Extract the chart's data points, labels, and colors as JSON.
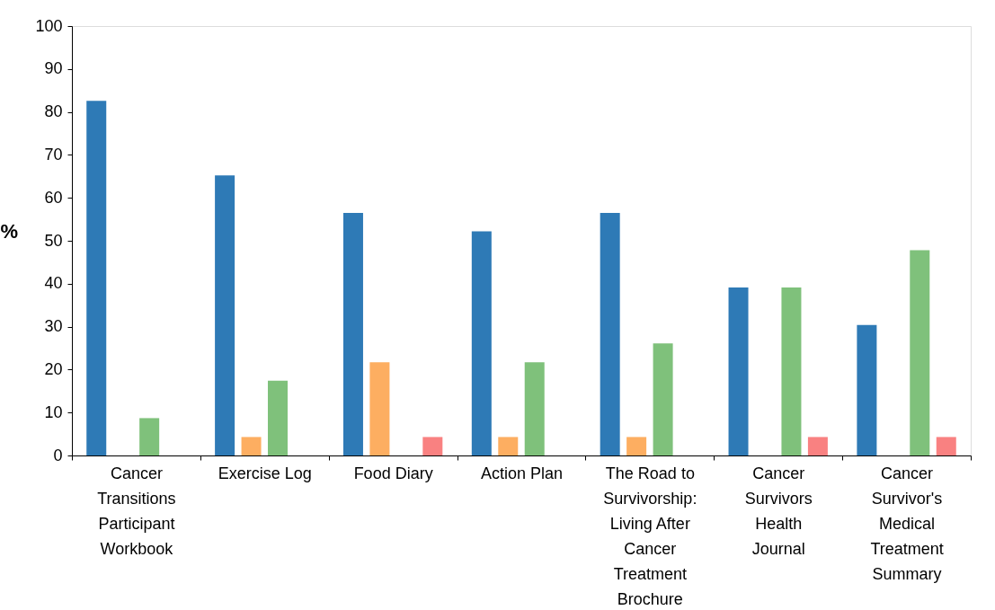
{
  "chart_data": {
    "type": "bar",
    "ylabel": "%",
    "categories": [
      "Cancer Transitions Participant Workbook",
      "Exercise Log",
      "Food Diary",
      "Action Plan",
      "The Road to Survivorship: Living After Cancer Treatment Brochure",
      "Cancer Survivors Health Journal",
      "Cancer Survivor's Medical Treatment Summary"
    ],
    "series": [
      {
        "color": "#2e7ab6",
        "values": [
          82.6,
          65.2,
          56.5,
          52.2,
          56.5,
          39.1,
          30.4
        ]
      },
      {
        "color": "#fdae61",
        "values": [
          0,
          4.3,
          21.7,
          4.3,
          4.3,
          0,
          0
        ]
      },
      {
        "color": "#7fc17b",
        "values": [
          8.7,
          17.4,
          0,
          21.7,
          26.1,
          39.1,
          47.8
        ]
      },
      {
        "color": "#f98181",
        "values": [
          0,
          0,
          4.3,
          0,
          0,
          4.3,
          4.3
        ]
      }
    ],
    "ylim": [
      0,
      100
    ],
    "yticks": [
      0,
      10,
      20,
      30,
      40,
      50,
      60,
      70,
      80,
      90,
      100
    ],
    "grid": false,
    "legend": false
  }
}
